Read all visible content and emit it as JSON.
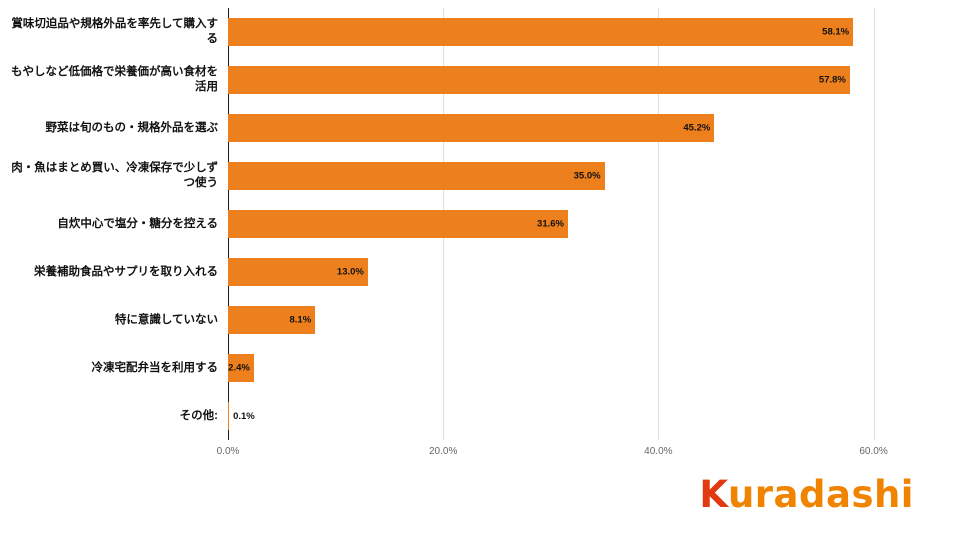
{
  "chart_data": {
    "type": "bar",
    "orientation": "horizontal",
    "title": "",
    "categories": [
      "賞味切迫品や規格外品を率先して購入する",
      "もやしなど低価格で栄養価が高い食材を活用",
      "野菜は旬のもの・規格外品を選ぶ",
      "肉・魚はまとめ買い、冷凍保存で少しずつ使う",
      "自炊中心で塩分・糖分を控える",
      "栄養補助食品やサプリを取り入れる",
      "特に意識していない",
      "冷凍宅配弁当を利用する",
      "その他:"
    ],
    "values": [
      58.1,
      57.8,
      45.2,
      35.0,
      31.6,
      13.0,
      8.1,
      2.4,
      0.1
    ],
    "value_labels": [
      "58.1%",
      "57.8%",
      "45.2%",
      "35.0%",
      "31.6%",
      "13.0%",
      "8.1%",
      "2.4%",
      "0.1%"
    ],
    "x_ticks": [
      {
        "value": 0,
        "label": "0.0%"
      },
      {
        "value": 20,
        "label": "20.0%"
      },
      {
        "value": 40,
        "label": "40.0%"
      },
      {
        "value": 60,
        "label": "60.0%"
      }
    ],
    "x_max": 60.6,
    "xlim": [
      0,
      60.6
    ],
    "bar_color": "#EE7F1D",
    "grid": true,
    "legend": false
  },
  "logo": {
    "k": "K",
    "rest": "uradashi",
    "k_color": "#E23A10",
    "text_color": "#F08300"
  }
}
